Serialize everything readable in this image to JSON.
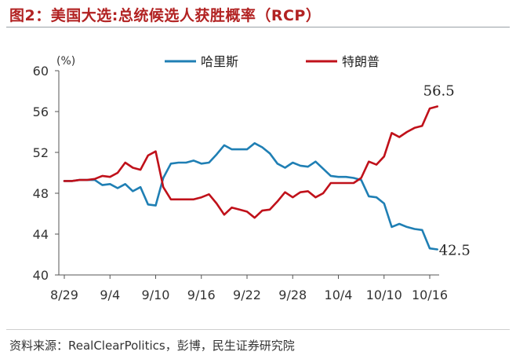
{
  "title": "图2：美国大选:总统候选人获胜概率（RCP）",
  "source": "资料来源：RealClearPolitics，彭博，民生证券研究院",
  "chart_data": {
    "type": "line",
    "title": "图2：美国大选:总统候选人获胜概率（RCP）",
    "unit": "(%)",
    "xlabel": "",
    "ylabel": "",
    "ylim": [
      40,
      60
    ],
    "yticks": [
      40,
      44,
      48,
      52,
      56,
      60
    ],
    "x_tick_labels": [
      "8/29",
      "9/4",
      "9/10",
      "9/16",
      "9/22",
      "9/28",
      "10/4",
      "10/10",
      "10/16"
    ],
    "x_tick_days": [
      0,
      6,
      12,
      18,
      24,
      30,
      36,
      42,
      48
    ],
    "legend_position": "top",
    "grid": false,
    "series": [
      {
        "name": "哈里斯",
        "color": "#1f7fb4",
        "end_label": "42.5",
        "x": [
          0,
          1,
          2,
          3,
          4,
          5,
          6,
          7,
          8,
          9,
          10,
          11,
          12,
          13,
          14,
          15,
          16,
          17,
          18,
          19,
          20,
          21,
          22,
          23,
          24,
          25,
          26,
          27,
          28,
          29,
          30,
          31,
          32,
          33,
          34,
          35,
          36,
          37,
          38,
          39,
          40,
          41,
          42,
          43,
          44,
          45,
          46,
          47,
          48,
          49
        ],
        "values": [
          49.2,
          49.2,
          49.3,
          49.3,
          49.3,
          48.8,
          48.9,
          48.5,
          48.9,
          48.2,
          48.6,
          46.9,
          46.8,
          49.5,
          50.9,
          51.0,
          51.0,
          51.2,
          50.9,
          51.0,
          51.8,
          52.7,
          52.3,
          52.3,
          52.3,
          52.9,
          52.5,
          51.9,
          50.9,
          50.5,
          51.0,
          50.7,
          50.6,
          51.1,
          50.4,
          49.7,
          49.6,
          49.6,
          49.5,
          49.3,
          47.7,
          47.6,
          47.0,
          44.7,
          45.0,
          44.7,
          44.5,
          44.4,
          42.6,
          42.5
        ]
      },
      {
        "name": "特朗普",
        "color": "#c0111a",
        "end_label": "56.5",
        "x": [
          0,
          1,
          2,
          3,
          4,
          5,
          6,
          7,
          8,
          9,
          10,
          11,
          12,
          13,
          14,
          15,
          16,
          17,
          18,
          19,
          20,
          21,
          22,
          23,
          24,
          25,
          26,
          27,
          28,
          29,
          30,
          31,
          32,
          33,
          34,
          35,
          36,
          37,
          38,
          39,
          40,
          41,
          42,
          43,
          44,
          45,
          46,
          47,
          48,
          49
        ],
        "values": [
          49.2,
          49.2,
          49.3,
          49.3,
          49.4,
          49.7,
          49.6,
          50.0,
          51.0,
          50.5,
          50.3,
          51.7,
          52.1,
          48.6,
          47.4,
          47.4,
          47.4,
          47.4,
          47.6,
          47.9,
          47.0,
          45.9,
          46.6,
          46.4,
          46.2,
          45.6,
          46.3,
          46.4,
          47.2,
          48.1,
          47.6,
          48.1,
          48.2,
          47.6,
          48.0,
          49.0,
          49.0,
          49.0,
          49.0,
          49.5,
          51.1,
          50.8,
          51.6,
          53.9,
          53.5,
          54.0,
          54.4,
          54.6,
          56.3,
          56.5
        ]
      }
    ]
  }
}
